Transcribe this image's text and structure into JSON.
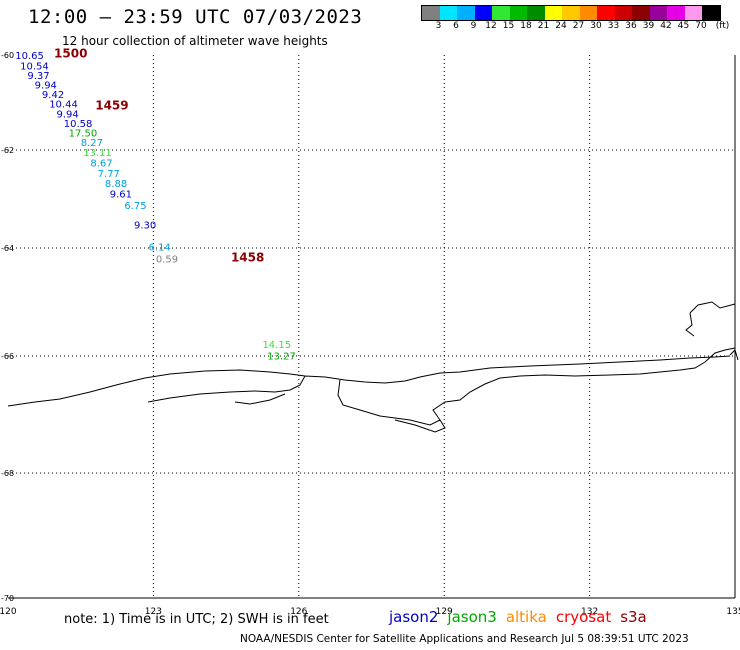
{
  "header": {
    "title": "12:00 – 23:59 UTC 07/03/2023",
    "subtitle": "12 hour collection of altimeter wave heights"
  },
  "legend": {
    "colors": [
      "#808080",
      "#00e5ff",
      "#00b0ff",
      "#0000ff",
      "#33e633",
      "#00bb00",
      "#008c00",
      "#ffff00",
      "#ffc800",
      "#ff8c00",
      "#ff0000",
      "#cc0000",
      "#8c0000",
      "#990099",
      "#e600e6",
      "#ff99ee",
      "#000000"
    ],
    "labels": [
      "3",
      "6",
      "9",
      "12",
      "15",
      "18",
      "21",
      "24",
      "27",
      "30",
      "33",
      "36",
      "39",
      "42",
      "45",
      "70",
      "(ft)"
    ]
  },
  "axes": {
    "lon_ticks": [
      "120",
      "123",
      "126",
      "129",
      "132",
      "135"
    ],
    "lat_ticks": [
      "-60",
      "-62",
      "-64",
      "-66",
      "-68",
      "-70"
    ]
  },
  "observations": [
    {
      "text": "10.65",
      "lon": 120.15,
      "lat": -60.08,
      "color": "#0000cc"
    },
    {
      "text": "10.54",
      "lon": 120.25,
      "lat": -60.3,
      "color": "#0000cc"
    },
    {
      "text": "9.37",
      "lon": 120.4,
      "lat": -60.5,
      "color": "#0000cc"
    },
    {
      "text": "9.94",
      "lon": 120.55,
      "lat": -60.7,
      "color": "#0000cc"
    },
    {
      "text": "9.42",
      "lon": 120.7,
      "lat": -60.9,
      "color": "#0000cc"
    },
    {
      "text": "10.44",
      "lon": 120.85,
      "lat": -61.1,
      "color": "#0000cc"
    },
    {
      "text": "9.94",
      "lon": 121.0,
      "lat": -61.32,
      "color": "#0000cc"
    },
    {
      "text": "10.58",
      "lon": 121.15,
      "lat": -61.52,
      "color": "#0000cc"
    },
    {
      "text": "17.50",
      "lon": 121.25,
      "lat": -61.72,
      "color": "#00aa00"
    },
    {
      "text": "8.27",
      "lon": 121.5,
      "lat": -61.92,
      "color": "#00a0e0"
    },
    {
      "text": "13.11",
      "lon": 121.55,
      "lat": -62.12,
      "color": "#33e633"
    },
    {
      "text": "8.67",
      "lon": 121.7,
      "lat": -62.34,
      "color": "#00a0e0"
    },
    {
      "text": "7.77",
      "lon": 121.85,
      "lat": -62.55,
      "color": "#00a0e0"
    },
    {
      "text": "8.88",
      "lon": 122.0,
      "lat": -62.76,
      "color": "#00a0e0"
    },
    {
      "text": "9.61",
      "lon": 122.1,
      "lat": -62.97,
      "color": "#0000cc"
    },
    {
      "text": "6.75",
      "lon": 122.4,
      "lat": -63.2,
      "color": "#00a0e0"
    },
    {
      "text": "9.30",
      "lon": 122.6,
      "lat": -63.6,
      "color": "#0000cc"
    },
    {
      "text": "6.14",
      "lon": 122.9,
      "lat": -64.05,
      "color": "#00a0e0"
    },
    {
      "text": "0.59",
      "lon": 123.05,
      "lat": -64.27,
      "color": "#808080"
    },
    {
      "text": "14.15",
      "lon": 125.25,
      "lat": -65.85,
      "color": "#33e633"
    },
    {
      "text": "13.27",
      "lon": 125.35,
      "lat": -66.06,
      "color": "#00aa00"
    }
  ],
  "times": [
    {
      "text": "1500",
      "lon": 120.95,
      "lat": -60.05,
      "color": "#8c0000"
    },
    {
      "text": "1459",
      "lon": 121.8,
      "lat": -61.15,
      "color": "#8c0000"
    },
    {
      "text": "1458",
      "lon": 124.6,
      "lat": -64.25,
      "color": "#8c0000"
    }
  ],
  "footer": {
    "note": "note: 1) Time is in UTC; 2) SWH is in feet",
    "credit": "NOAA/NESDIS Center for Satellite Applications and Research   Jul  5 08:39:51 UTC 2023",
    "satellites": [
      {
        "name": "jason2",
        "color": "#0000cc"
      },
      {
        "name": "jason3",
        "color": "#00aa00"
      },
      {
        "name": "altika",
        "color": "#ff8c00"
      },
      {
        "name": "cryosat",
        "color": "#ff0000"
      },
      {
        "name": "s3a",
        "color": "#8c0000"
      }
    ]
  }
}
